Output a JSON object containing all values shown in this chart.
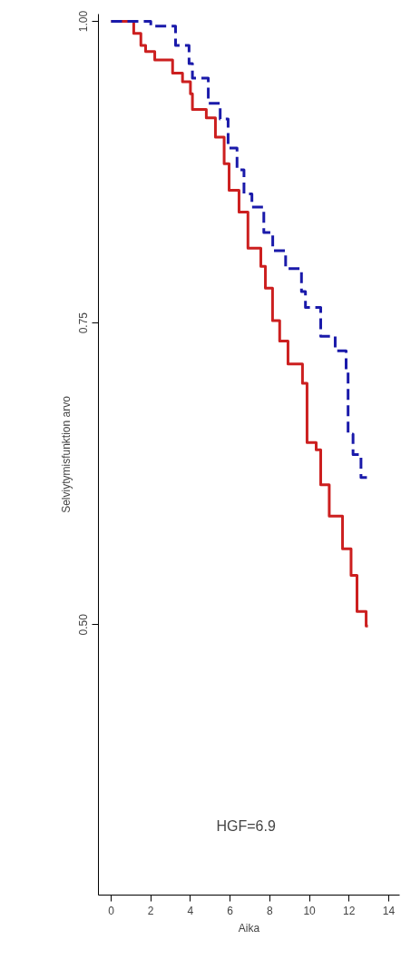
{
  "chart_data": {
    "type": "step",
    "xlabel": "Aika",
    "ylabel": "Selviytymisfunktion arvo",
    "xlim": [
      -0.64,
      14.55
    ],
    "ylim": [
      0.276,
      1.006
    ],
    "xticks": [
      0,
      2,
      4,
      6,
      8,
      10,
      12,
      14
    ],
    "yticks": [
      {
        "value": 1.0,
        "label": "1.00"
      },
      {
        "value": 0.75,
        "label": "0.75"
      },
      {
        "value": 0.5,
        "label": "0.50"
      }
    ],
    "grid": false,
    "annotations": [
      "HGF=6.9"
    ],
    "series": [
      {
        "color": "#cc1f1f",
        "line_style": "solid",
        "x": [
          0,
          1.14,
          1.5,
          1.74,
          2.2,
          3.1,
          3.6,
          4.0,
          4.1,
          4.8,
          5.26,
          5.7,
          5.95,
          6.45,
          6.9,
          7.55,
          7.78,
          8.14,
          8.5,
          8.92,
          9.65,
          9.88,
          10.34,
          10.57,
          11.0,
          11.67,
          12.1,
          12.4,
          12.86,
          12.95
        ],
        "values": [
          1.0,
          0.99,
          0.98,
          0.975,
          0.968,
          0.957,
          0.95,
          0.94,
          0.927,
          0.92,
          0.904,
          0.882,
          0.86,
          0.842,
          0.812,
          0.797,
          0.779,
          0.752,
          0.735,
          0.716,
          0.7,
          0.651,
          0.645,
          0.616,
          0.59,
          0.563,
          0.541,
          0.511,
          0.499,
          0.499
        ]
      },
      {
        "color": "#1a1aaa",
        "line_style": "dashed",
        "x": [
          0,
          2.0,
          3.25,
          3.93,
          4.1,
          4.9,
          5.5,
          5.9,
          6.35,
          6.7,
          7.1,
          7.7,
          8.15,
          8.8,
          9.6,
          9.8,
          10.57,
          11.3,
          11.85,
          11.95,
          12.2,
          12.6,
          12.9
        ],
        "values": [
          1.0,
          0.996,
          0.98,
          0.965,
          0.953,
          0.932,
          0.919,
          0.895,
          0.877,
          0.857,
          0.846,
          0.825,
          0.81,
          0.795,
          0.776,
          0.763,
          0.739,
          0.727,
          0.709,
          0.658,
          0.641,
          0.622,
          0.622
        ]
      }
    ]
  }
}
